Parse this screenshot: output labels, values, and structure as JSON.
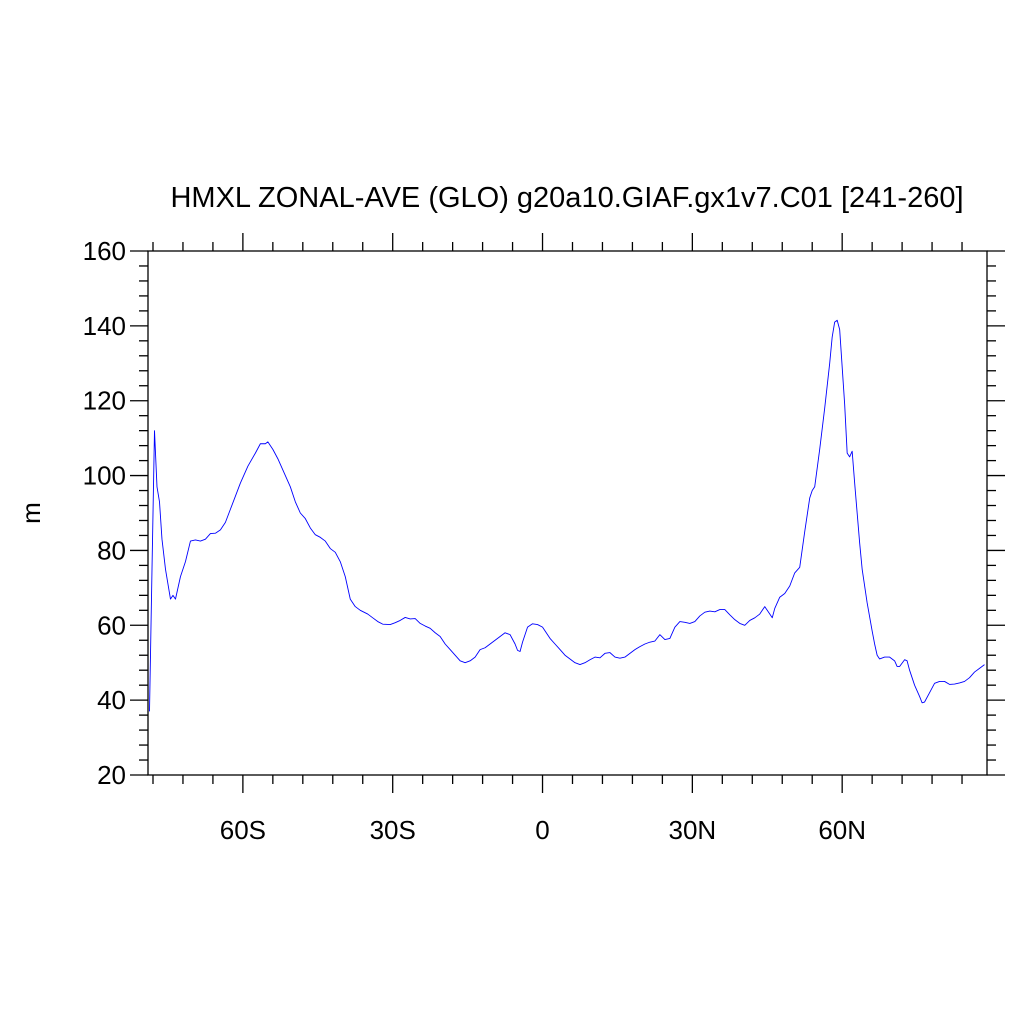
{
  "chart_data": {
    "type": "line",
    "title": "HMXL ZONAL-AVE (GLO) g20a10.GIAF.gx1v7.C01 [241-260]",
    "xlabel": "",
    "ylabel": "m",
    "xlim": [
      -79,
      89
    ],
    "ylim": [
      20,
      160
    ],
    "x_ticks": [
      {
        "value": -60,
        "label": "60S"
      },
      {
        "value": -30,
        "label": "30S"
      },
      {
        "value": 0,
        "label": "0"
      },
      {
        "value": 30,
        "label": "30N"
      },
      {
        "value": 60,
        "label": "60N"
      }
    ],
    "y_ticks": [
      20,
      40,
      60,
      80,
      100,
      120,
      140,
      160
    ],
    "grid": false,
    "line_color": "#0000ff",
    "series": [
      {
        "points": [
          [
            -78.7,
            37
          ],
          [
            -78.2,
            75
          ],
          [
            -77.7,
            112
          ],
          [
            -77.2,
            97
          ],
          [
            -76.7,
            93
          ],
          [
            -76.2,
            83
          ],
          [
            -75.5,
            75
          ],
          [
            -74.5,
            67
          ],
          [
            -74,
            68
          ],
          [
            -73.5,
            67
          ],
          [
            -72.5,
            73
          ],
          [
            -71.5,
            77
          ],
          [
            -70.5,
            82.5
          ],
          [
            -69.5,
            82.8
          ],
          [
            -68.5,
            82.5
          ],
          [
            -67.5,
            83
          ],
          [
            -66.5,
            84.5
          ],
          [
            -65.5,
            84.6
          ],
          [
            -64.5,
            85.5
          ],
          [
            -63.5,
            87.5
          ],
          [
            -62.5,
            91
          ],
          [
            -61.5,
            94.5
          ],
          [
            -60.5,
            98
          ],
          [
            -59,
            102.5
          ],
          [
            -57.5,
            106
          ],
          [
            -56.5,
            108.5
          ],
          [
            -55.5,
            108.5
          ],
          [
            -55,
            109
          ],
          [
            -54,
            107
          ],
          [
            -53,
            104.5
          ],
          [
            -51.5,
            100
          ],
          [
            -50.5,
            97
          ],
          [
            -49.5,
            93
          ],
          [
            -48.5,
            90
          ],
          [
            -47.5,
            88.5
          ],
          [
            -46.5,
            86
          ],
          [
            -45.5,
            84.2
          ],
          [
            -44.5,
            83.5
          ],
          [
            -43.5,
            82.5
          ],
          [
            -42.5,
            80.5
          ],
          [
            -41.5,
            79.5
          ],
          [
            -40.5,
            77
          ],
          [
            -39.5,
            73
          ],
          [
            -38.5,
            67
          ],
          [
            -37.5,
            65
          ],
          [
            -36.5,
            64
          ],
          [
            -35,
            63
          ],
          [
            -34,
            62
          ],
          [
            -33,
            61
          ],
          [
            -32,
            60.3
          ],
          [
            -30.5,
            60.2
          ],
          [
            -29.5,
            60.7
          ],
          [
            -28.5,
            61.3
          ],
          [
            -27.5,
            62.1
          ],
          [
            -26.5,
            61.7
          ],
          [
            -25.5,
            61.8
          ],
          [
            -24.5,
            60.5
          ],
          [
            -23.5,
            59.8
          ],
          [
            -22.5,
            59.2
          ],
          [
            -21.5,
            58
          ],
          [
            -20.5,
            57
          ],
          [
            -19.5,
            55
          ],
          [
            -18.5,
            53.5
          ],
          [
            -17.5,
            52
          ],
          [
            -16.5,
            50.5
          ],
          [
            -15.5,
            50
          ],
          [
            -14.5,
            50.5
          ],
          [
            -13.5,
            51.5
          ],
          [
            -12.5,
            53.5
          ],
          [
            -11.5,
            54
          ],
          [
            -10.5,
            55
          ],
          [
            -9.5,
            56
          ],
          [
            -8.5,
            57
          ],
          [
            -7.5,
            58
          ],
          [
            -6.5,
            57.5
          ],
          [
            -5.5,
            55
          ],
          [
            -5,
            53.3
          ],
          [
            -4.5,
            53
          ],
          [
            -4,
            55.5
          ],
          [
            -3.5,
            57.5
          ],
          [
            -3,
            59.5
          ],
          [
            -2,
            60.4
          ],
          [
            -1,
            60.2
          ],
          [
            0,
            59.5
          ],
          [
            0.5,
            58.5
          ],
          [
            1.5,
            56.5
          ],
          [
            2.5,
            55
          ],
          [
            3.5,
            53.5
          ],
          [
            4.5,
            52
          ],
          [
            5.5,
            51
          ],
          [
            6.5,
            50
          ],
          [
            7.5,
            49.5
          ],
          [
            8.5,
            50
          ],
          [
            9.5,
            50.8
          ],
          [
            10.5,
            51.5
          ],
          [
            11.5,
            51.3
          ],
          [
            12.5,
            52.5
          ],
          [
            13.5,
            52.7
          ],
          [
            14.5,
            51.5
          ],
          [
            15.5,
            51.2
          ],
          [
            16.5,
            51.5
          ],
          [
            17.5,
            52.5
          ],
          [
            18.5,
            53.5
          ],
          [
            19.5,
            54.3
          ],
          [
            20.5,
            55
          ],
          [
            21.5,
            55.5
          ],
          [
            22.5,
            55.8
          ],
          [
            23.5,
            57.5
          ],
          [
            24.5,
            56.2
          ],
          [
            25.5,
            56.5
          ],
          [
            26.5,
            59.5
          ],
          [
            27.5,
            61
          ],
          [
            28.5,
            60.8
          ],
          [
            29.5,
            60.5
          ],
          [
            30.5,
            61
          ],
          [
            31.5,
            62.5
          ],
          [
            32.5,
            63.5
          ],
          [
            33.5,
            63.8
          ],
          [
            34.5,
            63.6
          ],
          [
            35.5,
            64.2
          ],
          [
            36.5,
            64.2
          ],
          [
            37.5,
            62.8
          ],
          [
            38.5,
            61.5
          ],
          [
            39.5,
            60.5
          ],
          [
            40.5,
            60
          ],
          [
            41.5,
            61.3
          ],
          [
            42.5,
            62
          ],
          [
            43.5,
            63
          ],
          [
            44.5,
            65
          ],
          [
            45.5,
            63
          ],
          [
            46,
            62
          ],
          [
            46.5,
            64.5
          ],
          [
            47.5,
            67.5
          ],
          [
            48.5,
            68.5
          ],
          [
            49.5,
            70.5
          ],
          [
            50.5,
            74
          ],
          [
            51.5,
            75.5
          ],
          [
            52.5,
            85
          ],
          [
            53.5,
            94
          ],
          [
            54,
            96
          ],
          [
            54.5,
            97
          ],
          [
            55.5,
            107
          ],
          [
            56.5,
            118
          ],
          [
            57.5,
            130
          ],
          [
            58,
            137
          ],
          [
            58.5,
            141
          ],
          [
            59,
            141.5
          ],
          [
            59.5,
            139
          ],
          [
            60.5,
            119
          ],
          [
            61,
            106
          ],
          [
            61.5,
            105
          ],
          [
            62,
            106.5
          ],
          [
            62.5,
            98
          ],
          [
            63,
            90
          ],
          [
            63.5,
            82
          ],
          [
            64,
            75
          ],
          [
            65,
            66
          ],
          [
            66,
            58.5
          ],
          [
            66.5,
            55
          ],
          [
            67,
            52
          ],
          [
            67.5,
            51
          ],
          [
            68.5,
            51.5
          ],
          [
            69.5,
            51.5
          ],
          [
            70.5,
            50.5
          ],
          [
            71,
            49
          ],
          [
            71.5,
            49
          ],
          [
            72.5,
            50.8
          ],
          [
            73,
            50.5
          ],
          [
            73.5,
            48
          ],
          [
            74.5,
            44
          ],
          [
            75.5,
            41
          ],
          [
            76,
            39.3
          ],
          [
            76.5,
            39.5
          ],
          [
            77.5,
            42
          ],
          [
            78.5,
            44.5
          ],
          [
            79.5,
            45
          ],
          [
            80.5,
            45
          ],
          [
            81.5,
            44.2
          ],
          [
            82.5,
            44.3
          ],
          [
            83.5,
            44.6
          ],
          [
            84.5,
            45
          ],
          [
            85.5,
            46
          ],
          [
            86.5,
            47.5
          ],
          [
            87.5,
            48.5
          ],
          [
            88.5,
            49.5
          ]
        ]
      }
    ]
  }
}
